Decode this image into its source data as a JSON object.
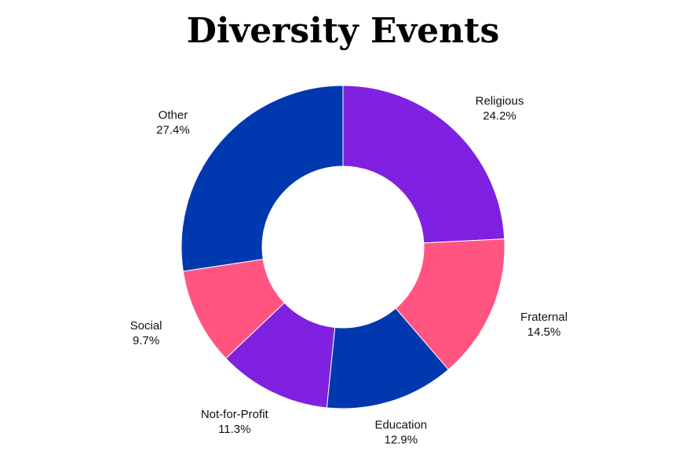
{
  "chart_data": {
    "type": "pie",
    "title": "Diversity Events",
    "categories": [
      "Religious",
      "Fraternal",
      "Education",
      "Not-for-Profit",
      "Social",
      "Other"
    ],
    "values": [
      24.2,
      14.5,
      12.9,
      11.3,
      9.7,
      27.4
    ],
    "value_labels": [
      "24.2%",
      "14.5%",
      "12.9%",
      "11.3%",
      "9.7%",
      "27.4%"
    ],
    "colors": [
      "#8020E0",
      "#FF5580",
      "#0038B0",
      "#8020E0",
      "#FF5580",
      "#0038B0"
    ],
    "donut": true,
    "legend": "none"
  }
}
